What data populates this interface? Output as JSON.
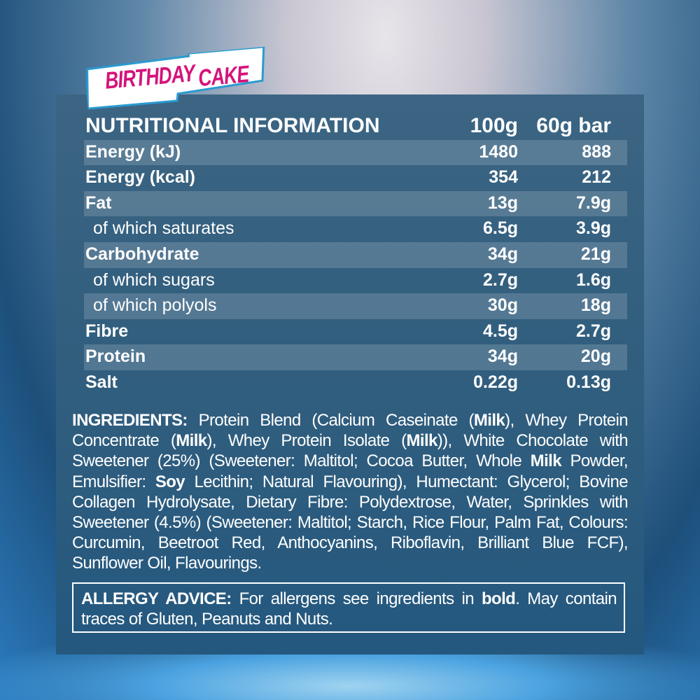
{
  "badge": {
    "word1": "BIRTHDAY",
    "word2": "CAKE",
    "color": "#d4147a"
  },
  "nutrition": {
    "header": [
      "NUTRITIONAL INFORMATION",
      "100g",
      "60g bar"
    ],
    "rows": [
      {
        "label": "Energy (kJ)",
        "per100": "1480",
        "perBar": "888",
        "sub": false
      },
      {
        "label": "Energy (kcal)",
        "per100": "354",
        "perBar": "212",
        "sub": false
      },
      {
        "label": "Fat",
        "per100": "13g",
        "perBar": "7.9g",
        "sub": false
      },
      {
        "label": "of which saturates",
        "per100": "6.5g",
        "perBar": "3.9g",
        "sub": true
      },
      {
        "label": "Carbohydrate",
        "per100": "34g",
        "perBar": "21g",
        "sub": false
      },
      {
        "label": "of which sugars",
        "per100": "2.7g",
        "perBar": "1.6g",
        "sub": true
      },
      {
        "label": "of which polyols",
        "per100": "30g",
        "perBar": "18g",
        "sub": true
      },
      {
        "label": "Fibre",
        "per100": "4.5g",
        "perBar": "2.7g",
        "sub": false
      },
      {
        "label": "Protein",
        "per100": "34g",
        "perBar": "20g",
        "sub": false
      },
      {
        "label": "Salt",
        "per100": "0.22g",
        "perBar": "0.13g",
        "sub": false
      }
    ]
  },
  "ingredients": {
    "lines": [
      [
        {
          "t": "INGREDIENTS:",
          "b": true
        },
        {
          "t": " Protein Blend (Calcium Caseinate (",
          "b": false
        },
        {
          "t": "Milk",
          "b": true
        },
        {
          "t": "), Whey Protein",
          "b": false
        }
      ],
      [
        {
          "t": "Concentrate (",
          "b": false
        },
        {
          "t": "Milk",
          "b": true
        },
        {
          "t": "), Whey Protein Isolate (",
          "b": false
        },
        {
          "t": "Milk",
          "b": true
        },
        {
          "t": ")), White Chocolate with",
          "b": false
        }
      ],
      [
        {
          "t": "Sweetener (25%) (Sweetener: Maltitol; Cocoa Butter, Whole ",
          "b": false
        },
        {
          "t": "Milk",
          "b": true
        },
        {
          "t": " Powder,",
          "b": false
        }
      ],
      [
        {
          "t": "Emulsifier: ",
          "b": false
        },
        {
          "t": "Soy",
          "b": true
        },
        {
          "t": " Lecithin; Natural Flavouring), Humectant: Glycerol;  Bovine",
          "b": false
        }
      ],
      [
        {
          "t": "Collagen Hydrolysate, Dietary Fibre: Polydextrose, Water, Sprinkles with",
          "b": false
        }
      ],
      [
        {
          "t": "Sweetener (4.5%) (Sweetener: Maltitol; Starch, Rice Flour, Palm Fat, Colours:",
          "b": false
        }
      ],
      [
        {
          "t": "Curcumin, Beetroot Red, Anthocyanins, Riboflavin, Brilliant Blue FCF),",
          "b": false
        }
      ],
      [
        {
          "t": "Sunflower Oil, Flavourings.",
          "b": false
        }
      ]
    ]
  },
  "allergy": {
    "lines": [
      [
        {
          "t": "ALLERGY ADVICE:",
          "b": true
        },
        {
          "t": "  For allergens see ingredients in ",
          "b": false
        },
        {
          "t": "bold",
          "b": true
        },
        {
          "t": ". May contain",
          "b": false
        }
      ],
      [
        {
          "t": "traces of Gluten, Peanuts and Nuts.",
          "b": false
        }
      ]
    ]
  }
}
